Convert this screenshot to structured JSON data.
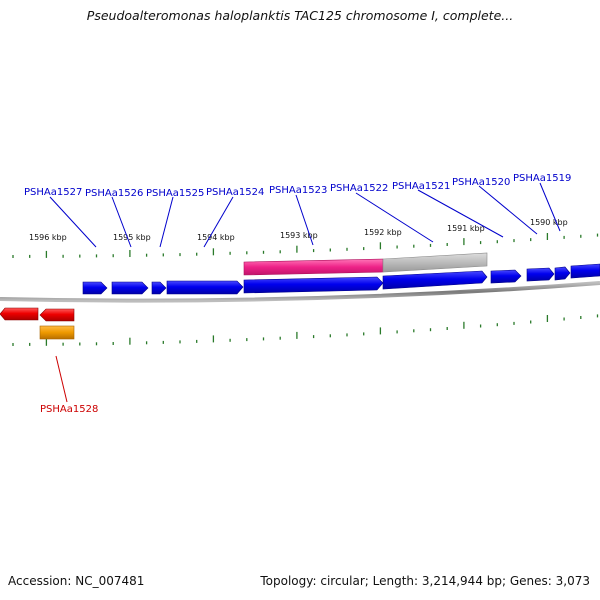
{
  "title": "Pseudoalteromonas haloplanktis TAC125 chromosome I, complete...",
  "accession": "Accession: NC_007481",
  "summary": "Topology: circular; Length: 3,214,944 bp; Genes: 3,073",
  "colors": {
    "forward_gene": "#0000ee",
    "reverse_gene": "#ee0000",
    "label_forward": "#0000cc",
    "label_reverse": "#cc0000",
    "tick": "#2a7a2a",
    "pink_feature": "#ee2288",
    "gray_feature": "#bbbbbb",
    "orange_feature": "#ee9900"
  },
  "kbp_labels": [
    "1596 kbp",
    "1595 kbp",
    "1594 kbp",
    "1593 kbp",
    "1592 kbp",
    "1591 kbp",
    "1590 kbp"
  ],
  "gene_labels": [
    {
      "text": "PSHAa1527",
      "strand": "forward"
    },
    {
      "text": "PSHAa1526",
      "strand": "forward"
    },
    {
      "text": "PSHAa1525",
      "strand": "forward"
    },
    {
      "text": "PSHAa1524",
      "strand": "forward"
    },
    {
      "text": "PSHAa1523",
      "strand": "forward"
    },
    {
      "text": "PSHAa1522",
      "strand": "forward"
    },
    {
      "text": "PSHAa1521",
      "strand": "forward"
    },
    {
      "text": "PSHAa1520",
      "strand": "forward"
    },
    {
      "text": "PSHAa1519",
      "strand": "forward"
    },
    {
      "text": "PSHAa1528",
      "strand": "reverse"
    }
  ]
}
